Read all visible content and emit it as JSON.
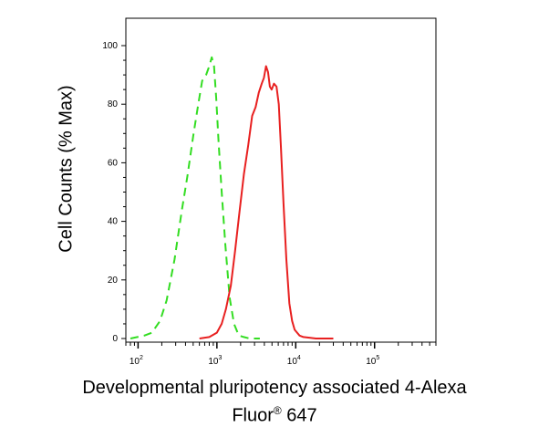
{
  "chart_data": {
    "type": "line",
    "ylabel": "Cell Counts (% Max)",
    "xlabel_line1": "Developmental pluripotency associated 4-Alexa",
    "xlabel_line2_main": "Fluor",
    "xlabel_line2_sup": "®",
    "xlabel_line2_rest": " 647",
    "xscale": "log",
    "xlim": [
      70,
      600000
    ],
    "ylim": [
      0,
      100
    ],
    "yticks": [
      0,
      20,
      40,
      60,
      80,
      100
    ],
    "ytick_labels": [
      "0",
      "20",
      "40",
      "60",
      "80",
      "100"
    ],
    "xticks": [
      100,
      1000,
      10000,
      100000
    ],
    "xtick_labels": [
      {
        "base": "10",
        "exp": "2"
      },
      {
        "base": "10",
        "exp": "3"
      },
      {
        "base": "10",
        "exp": "4"
      },
      {
        "base": "10",
        "exp": "5"
      }
    ],
    "grid": false,
    "series": [
      {
        "color": "#33dd22",
        "style": "dashed",
        "x": [
          80,
          120,
          150,
          190,
          230,
          290,
          360,
          420,
          500,
          580,
          650,
          730,
          800,
          860,
          920,
          980,
          1050,
          1150,
          1280,
          1450,
          1650,
          1900,
          2200,
          2600,
          3500
        ],
        "y": [
          0,
          1,
          2,
          6,
          13,
          27,
          44,
          55,
          69,
          80,
          88,
          90,
          93,
          96,
          93,
          82,
          67,
          50,
          32,
          14,
          5,
          1,
          0.5,
          0,
          0
        ]
      },
      {
        "color": "#e82020",
        "style": "solid",
        "x": [
          600,
          800,
          1000,
          1150,
          1300,
          1500,
          1700,
          1950,
          2200,
          2500,
          2800,
          3100,
          3400,
          3700,
          3950,
          4200,
          4450,
          4700,
          4950,
          5300,
          5700,
          6100,
          6500,
          7000,
          7600,
          8300,
          9000,
          9700,
          10400,
          11200,
          12500,
          14500,
          18000,
          30000
        ],
        "y": [
          0,
          0.5,
          2,
          5,
          10,
          18,
          30,
          44,
          56,
          66,
          76,
          79,
          84,
          87,
          89,
          93,
          91,
          86,
          85,
          87,
          86,
          80,
          65,
          46,
          27,
          12,
          6,
          3,
          2,
          1,
          0.5,
          0.3,
          0,
          0
        ]
      }
    ]
  }
}
